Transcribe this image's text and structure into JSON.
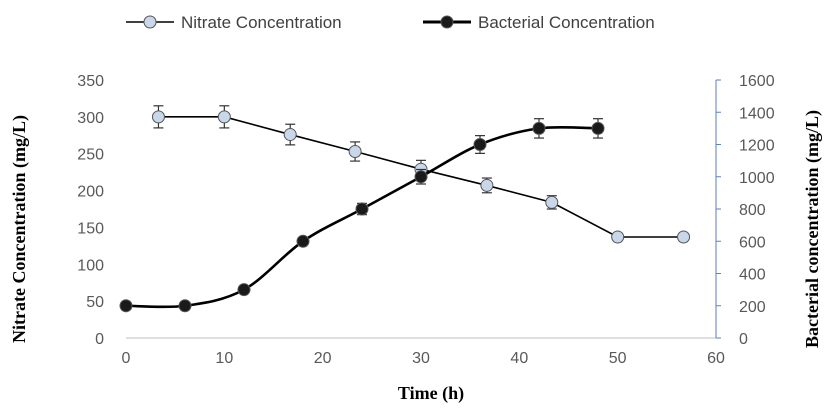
{
  "chart_data": {
    "type": "line",
    "xlabel": "Time (h)",
    "ylabel_left": "Nitrate Concentration (mg/L)",
    "ylabel_right": "Bacterial concentration (mg/L)",
    "xlim": [
      0,
      60
    ],
    "ylim_left": [
      0,
      350
    ],
    "ylim_right": [
      0,
      1600
    ],
    "x_ticks": [
      "0",
      "10",
      "20",
      "30",
      "40",
      "50",
      "60"
    ],
    "y_left_ticks": [
      "0",
      "50",
      "100",
      "150",
      "200",
      "250",
      "300",
      "350"
    ],
    "y_right_ticks": [
      "0",
      "200",
      "400",
      "600",
      "800",
      "1000",
      "1200",
      "1400",
      "1600"
    ],
    "grid": false,
    "legend_position": "top",
    "series": [
      {
        "name": "Nitrate Concentration",
        "axis": "left",
        "color": "#000000",
        "marker_fill": "#c9d7ea",
        "smooth": false,
        "points": [
          {
            "x": 3.3,
            "y": 300,
            "err": 15
          },
          {
            "x": 10,
            "y": 300,
            "err": 15
          },
          {
            "x": 16.7,
            "y": 276,
            "err": 14
          },
          {
            "x": 23.3,
            "y": 253,
            "err": 13
          },
          {
            "x": 30,
            "y": 229,
            "err": 12
          },
          {
            "x": 36.7,
            "y": 207,
            "err": 10
          },
          {
            "x": 43.3,
            "y": 184,
            "err": 9
          },
          {
            "x": 50,
            "y": 137,
            "err": 0
          },
          {
            "x": 56.7,
            "y": 137,
            "err": 0
          }
        ]
      },
      {
        "name": "Bacterial Concentration",
        "axis": "right",
        "color": "#000000",
        "marker_fill": "#1a1a1a",
        "smooth": true,
        "points": [
          {
            "x": 0,
            "y": 200,
            "err": 0
          },
          {
            "x": 6,
            "y": 200,
            "err": 0
          },
          {
            "x": 12,
            "y": 300,
            "err": 0
          },
          {
            "x": 18,
            "y": 600,
            "err": 0
          },
          {
            "x": 24,
            "y": 800,
            "err": 35
          },
          {
            "x": 30,
            "y": 1000,
            "err": 45
          },
          {
            "x": 36,
            "y": 1200,
            "err": 55
          },
          {
            "x": 42,
            "y": 1300,
            "err": 60
          },
          {
            "x": 48,
            "y": 1300,
            "err": 60
          }
        ]
      }
    ]
  }
}
